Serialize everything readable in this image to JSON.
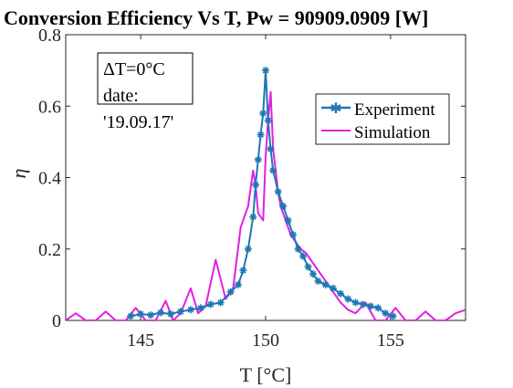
{
  "chart_data": {
    "type": "line",
    "title": "Conversion Efficiency Vs T, Pw = 90909.0909 [W]",
    "xlabel": "T [°C]",
    "ylabel": "η",
    "xlim": [
      142,
      158
    ],
    "ylim": [
      0,
      0.8
    ],
    "xticks": [
      145,
      150,
      155
    ],
    "yticks": [
      0,
      0.2,
      0.4,
      0.6,
      0.8
    ],
    "x_tick_labels": [
      "145",
      "150",
      "155"
    ],
    "y_tick_labels": [
      "0",
      "0.2",
      "0.4",
      "0.6",
      "0.8"
    ],
    "grid": false,
    "legend_position": "top-right",
    "annotation_lines": [
      "ΔT=0°C",
      "date:",
      "'19.09.17'"
    ],
    "series": [
      {
        "name": "Experiment",
        "color": "#1f77b4",
        "marker": "asterisk",
        "x": [
          144.6,
          145.0,
          145.4,
          145.8,
          146.2,
          146.6,
          147.0,
          147.4,
          147.8,
          148.2,
          148.6,
          148.9,
          149.1,
          149.3,
          149.5,
          149.6,
          149.7,
          149.8,
          149.9,
          150.0,
          150.1,
          150.2,
          150.3,
          150.5,
          150.7,
          150.9,
          151.1,
          151.3,
          151.5,
          151.7,
          151.9,
          152.1,
          152.4,
          152.7,
          153.0,
          153.3,
          153.6,
          153.9,
          154.2,
          154.5,
          154.8,
          155.1
        ],
        "y": [
          0.012,
          0.018,
          0.015,
          0.022,
          0.018,
          0.025,
          0.03,
          0.035,
          0.045,
          0.05,
          0.08,
          0.1,
          0.14,
          0.2,
          0.29,
          0.38,
          0.45,
          0.52,
          0.58,
          0.7,
          0.56,
          0.48,
          0.42,
          0.36,
          0.32,
          0.28,
          0.24,
          0.2,
          0.18,
          0.15,
          0.13,
          0.11,
          0.1,
          0.09,
          0.075,
          0.06,
          0.05,
          0.045,
          0.04,
          0.035,
          0.02,
          0.012
        ]
      },
      {
        "name": "Simulation",
        "color": "#e020e0",
        "x": [
          142.0,
          142.4,
          142.8,
          143.2,
          143.6,
          144.0,
          144.4,
          144.8,
          145.2,
          145.6,
          146.0,
          146.3,
          146.6,
          147.0,
          147.3,
          147.6,
          148.0,
          148.4,
          148.7,
          149.0,
          149.3,
          149.5,
          149.6,
          149.7,
          149.9,
          150.0,
          150.1,
          150.2,
          150.3,
          150.4,
          150.5,
          150.6,
          150.8,
          151.0,
          151.2,
          151.4,
          151.6,
          151.8,
          152.0,
          152.3,
          152.6,
          153.0,
          153.3,
          153.6,
          154.0,
          154.4,
          154.8,
          155.2,
          155.6,
          156.0,
          156.4,
          156.8,
          157.2,
          157.6,
          158.0
        ],
        "y": [
          0.0,
          0.02,
          0.0,
          0.0,
          0.025,
          0.0,
          0.0,
          0.035,
          0.0,
          0.0,
          0.055,
          0.0,
          0.02,
          0.09,
          0.02,
          0.04,
          0.17,
          0.06,
          0.09,
          0.26,
          0.32,
          0.42,
          0.38,
          0.3,
          0.28,
          0.46,
          0.56,
          0.64,
          0.48,
          0.42,
          0.36,
          0.32,
          0.28,
          0.24,
          0.22,
          0.2,
          0.19,
          0.17,
          0.15,
          0.12,
          0.09,
          0.05,
          0.03,
          0.02,
          0.05,
          0.0,
          0.0,
          0.035,
          0.0,
          0.0,
          0.025,
          0.0,
          0.0,
          0.02,
          0.03
        ]
      }
    ]
  }
}
